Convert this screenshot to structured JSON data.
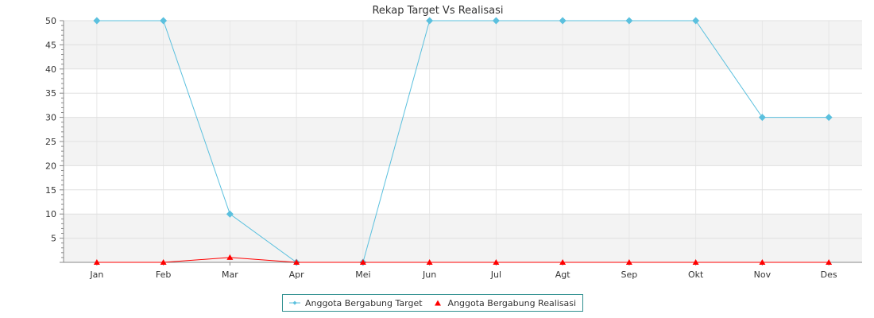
{
  "chart_data": {
    "type": "line",
    "title": "Rekap Target Vs Realisasi",
    "xlabel": "",
    "ylabel": "",
    "categories": [
      "Jan",
      "Feb",
      "Mar",
      "Apr",
      "Mei",
      "Jun",
      "Jul",
      "Agt",
      "Sep",
      "Okt",
      "Nov",
      "Des"
    ],
    "ylim": [
      0,
      50
    ],
    "yticks": [
      5,
      10,
      15,
      20,
      25,
      30,
      35,
      40,
      45,
      50
    ],
    "grid": true,
    "legend_position": "bottom-center",
    "series": [
      {
        "name": "Anggota Bergabung Target",
        "color": "#5bc0de",
        "marker": "diamond",
        "values": [
          50,
          50,
          10,
          0,
          0,
          50,
          50,
          50,
          50,
          50,
          30,
          30
        ]
      },
      {
        "name": "Anggota Bergabung Realisasi",
        "color": "#ff0000",
        "marker": "triangle",
        "values": [
          0,
          0,
          1,
          0,
          0,
          0,
          0,
          0,
          0,
          0,
          0,
          0
        ]
      }
    ]
  }
}
